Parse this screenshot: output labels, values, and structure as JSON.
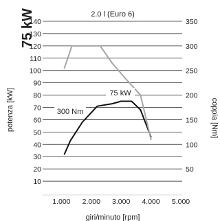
{
  "chart_data": {
    "type": "line",
    "title": "2.0 l (Euro 6)",
    "power_badge": "75 kW",
    "xlabel": "giri/minuto [rpm]",
    "ylabel_left": "potenza [kW]",
    "ylabel_right": "coppia [Nm]",
    "xlim": [
      0,
      5000
    ],
    "ylim_left": [
      0,
      140
    ],
    "ylim_right": [
      0,
      350
    ],
    "x_ticks": [
      1000,
      2000,
      3000,
      4000,
      5000
    ],
    "x_tick_labels": [
      "1.000",
      "2.000",
      "3.000",
      "4.000",
      "5.000"
    ],
    "y_left_ticks": [
      10,
      20,
      30,
      40,
      50,
      60,
      70,
      80,
      90,
      100,
      110,
      120,
      130,
      140
    ],
    "y_right_ticks": [
      50,
      100,
      150,
      200,
      250,
      300,
      350
    ],
    "grid": true,
    "series": [
      {
        "name": "75 kW",
        "axis": "left",
        "color": "#111111",
        "x": [
          1100,
          1300,
          1700,
          2200,
          2700,
          3000,
          3350,
          3650,
          4000
        ],
        "y": [
          32,
          43,
          58,
          71,
          73,
          75,
          75,
          68,
          46
        ]
      },
      {
        "name": "300 Nm",
        "axis": "right",
        "color": "#a6a6a6",
        "x": [
          1100,
          1350,
          2000,
          2300,
          2700,
          3200,
          3650,
          4000
        ],
        "y": [
          255,
          300,
          300,
          300,
          265,
          230,
          200,
          110
        ]
      }
    ]
  }
}
